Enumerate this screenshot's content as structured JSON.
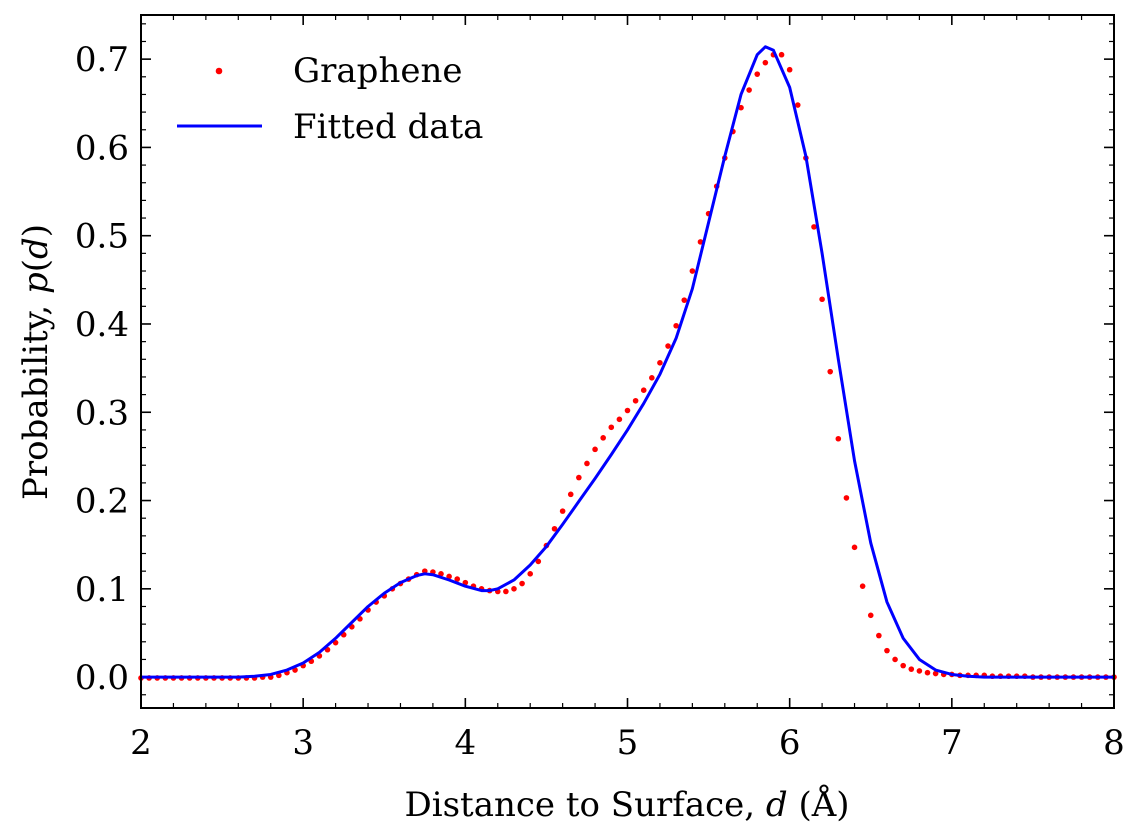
{
  "chart_data": {
    "type": "scatter",
    "title": "",
    "xlabel": {
      "prefix": "Distance to Surface, ",
      "var": "d",
      "suffix": " (Å)"
    },
    "ylabel": {
      "prefix": "Probability, ",
      "var": "p",
      "open": "(",
      "arg": "d",
      "close": ")"
    },
    "xlim": [
      2,
      8
    ],
    "ylim": [
      -0.035,
      0.75
    ],
    "x_ticks": [
      2,
      3,
      4,
      5,
      6,
      7,
      8
    ],
    "x_tick_labels": [
      "2",
      "3",
      "4",
      "5",
      "6",
      "7",
      "8"
    ],
    "y_ticks": [
      0.0,
      0.1,
      0.2,
      0.3,
      0.4,
      0.5,
      0.6,
      0.7
    ],
    "y_tick_labels": [
      "0.0",
      "0.1",
      "0.2",
      "0.3",
      "0.4",
      "0.5",
      "0.6",
      "0.7"
    ],
    "x_minor_step": 0.2,
    "y_minor_step": 0.02,
    "grid": false,
    "legend_position": "top-left",
    "series": [
      {
        "name": "Graphene",
        "kind": "scatter",
        "color": "#ff0000",
        "x": [
          2.0,
          2.05,
          2.1,
          2.15,
          2.2,
          2.25,
          2.3,
          2.35,
          2.4,
          2.45,
          2.5,
          2.55,
          2.6,
          2.65,
          2.7,
          2.75,
          2.8,
          2.85,
          2.9,
          2.95,
          3.0,
          3.05,
          3.1,
          3.15,
          3.2,
          3.25,
          3.3,
          3.35,
          3.4,
          3.45,
          3.5,
          3.55,
          3.6,
          3.65,
          3.7,
          3.75,
          3.8,
          3.85,
          3.9,
          3.95,
          4.0,
          4.05,
          4.1,
          4.15,
          4.2,
          4.25,
          4.3,
          4.35,
          4.4,
          4.45,
          4.5,
          4.55,
          4.6,
          4.65,
          4.7,
          4.75,
          4.8,
          4.85,
          4.9,
          4.95,
          5.0,
          5.05,
          5.1,
          5.15,
          5.2,
          5.25,
          5.3,
          5.35,
          5.4,
          5.45,
          5.5,
          5.55,
          5.6,
          5.65,
          5.7,
          5.75,
          5.8,
          5.85,
          5.9,
          5.95,
          6.0,
          6.05,
          6.1,
          6.15,
          6.2,
          6.25,
          6.3,
          6.35,
          6.4,
          6.45,
          6.5,
          6.55,
          6.6,
          6.65,
          6.7,
          6.75,
          6.8,
          6.85,
          6.9,
          6.95,
          7.0,
          7.05,
          7.1,
          7.15,
          7.2,
          7.25,
          7.3,
          7.35,
          7.4,
          7.45,
          7.5,
          7.55,
          7.6,
          7.65,
          7.7,
          7.75,
          7.8,
          7.85,
          7.9,
          7.95,
          8.0
        ],
        "y": [
          -0.001,
          -0.001,
          -0.001,
          -0.001,
          -0.001,
          -0.001,
          -0.001,
          -0.001,
          -0.001,
          -0.001,
          -0.001,
          -0.001,
          -0.001,
          -0.001,
          -0.001,
          0.0,
          0.0,
          0.002,
          0.005,
          0.008,
          0.013,
          0.018,
          0.024,
          0.031,
          0.039,
          0.048,
          0.057,
          0.066,
          0.076,
          0.085,
          0.092,
          0.1,
          0.106,
          0.111,
          0.116,
          0.12,
          0.119,
          0.117,
          0.114,
          0.111,
          0.107,
          0.103,
          0.1,
          0.098,
          0.097,
          0.097,
          0.1,
          0.106,
          0.117,
          0.131,
          0.149,
          0.168,
          0.188,
          0.207,
          0.226,
          0.242,
          0.258,
          0.271,
          0.283,
          0.292,
          0.302,
          0.313,
          0.325,
          0.339,
          0.356,
          0.375,
          0.398,
          0.427,
          0.46,
          0.493,
          0.525,
          0.556,
          0.588,
          0.618,
          0.645,
          0.665,
          0.683,
          0.696,
          0.705,
          0.705,
          0.688,
          0.648,
          0.588,
          0.51,
          0.428,
          0.346,
          0.27,
          0.203,
          0.147,
          0.103,
          0.07,
          0.047,
          0.03,
          0.02,
          0.013,
          0.009,
          0.007,
          0.005,
          0.004,
          0.003,
          0.003,
          0.002,
          0.002,
          0.002,
          0.002,
          0.001,
          0.001,
          0.001,
          0.001,
          0.001,
          0.0,
          0.0,
          0.0,
          0.0,
          0.0,
          0.0,
          0.0,
          0.0,
          0.0,
          0.0,
          0.0
        ]
      },
      {
        "name": "Fitted data",
        "kind": "line",
        "color": "#0000ff",
        "x": [
          2.0,
          2.1,
          2.2,
          2.3,
          2.4,
          2.5,
          2.6,
          2.7,
          2.8,
          2.9,
          3.0,
          3.1,
          3.2,
          3.3,
          3.4,
          3.5,
          3.6,
          3.7,
          3.75,
          3.8,
          3.9,
          4.0,
          4.1,
          4.15,
          4.2,
          4.3,
          4.4,
          4.5,
          4.6,
          4.7,
          4.8,
          4.9,
          5.0,
          5.1,
          5.2,
          5.3,
          5.4,
          5.5,
          5.6,
          5.7,
          5.8,
          5.85,
          5.9,
          6.0,
          6.1,
          6.2,
          6.3,
          6.4,
          6.5,
          6.6,
          6.7,
          6.8,
          6.9,
          7.0,
          7.1,
          7.2,
          7.3,
          7.4,
          7.6,
          7.8,
          8.0
        ],
        "y": [
          0.0,
          0.0,
          0.0,
          0.0,
          0.0,
          0.0,
          0.0,
          0.001,
          0.003,
          0.008,
          0.016,
          0.028,
          0.044,
          0.062,
          0.08,
          0.095,
          0.107,
          0.115,
          0.117,
          0.116,
          0.11,
          0.103,
          0.098,
          0.098,
          0.1,
          0.11,
          0.127,
          0.148,
          0.173,
          0.199,
          0.225,
          0.252,
          0.28,
          0.31,
          0.343,
          0.384,
          0.44,
          0.515,
          0.59,
          0.66,
          0.705,
          0.714,
          0.71,
          0.668,
          0.59,
          0.48,
          0.36,
          0.245,
          0.152,
          0.085,
          0.044,
          0.02,
          0.008,
          0.003,
          0.001,
          0.0,
          0.0,
          0.0,
          0.0,
          0.0,
          0.0
        ]
      }
    ]
  }
}
